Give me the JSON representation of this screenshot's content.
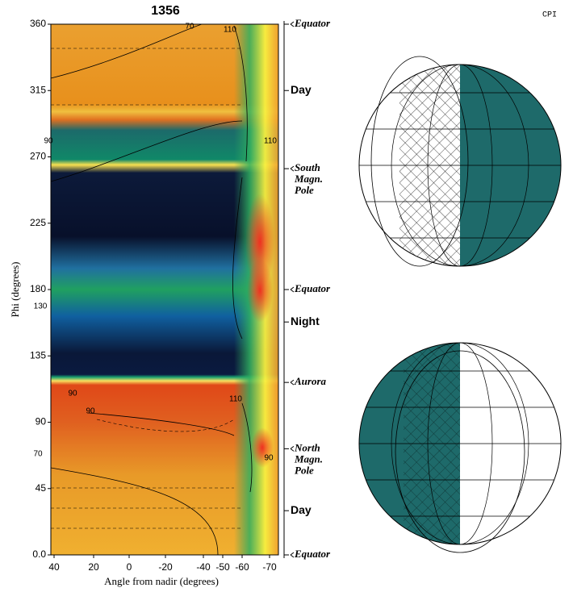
{
  "chart_data": {
    "type": "heatmap",
    "title": "1356",
    "corner_label": "CPI",
    "x_label": "Angle from nadir (degrees)",
    "y_label": "Phi (degrees)",
    "xlim": [
      42,
      -74
    ],
    "xticks": [
      40,
      20,
      0,
      -20,
      -40,
      -50,
      -60,
      -70
    ],
    "ylim": [
      0,
      360
    ],
    "yticks": [
      {
        "value": 0,
        "label": "0.0"
      },
      45,
      90,
      135,
      180,
      225,
      270,
      315,
      360
    ],
    "contour_labels": [
      "70",
      "90",
      "110",
      "90",
      "110",
      "130",
      "90",
      "110",
      "90",
      "70"
    ],
    "annotations": [
      {
        "lines": [
          "Equator"
        ],
        "phi": 360,
        "style": "italic"
      },
      {
        "lines": [
          "Day"
        ],
        "phi": 315,
        "style": "bold"
      },
      {
        "lines": [
          "South",
          "Magn.",
          "Pole"
        ],
        "phi": 262,
        "style": "italic"
      },
      {
        "lines": [
          "Equator"
        ],
        "phi": 180,
        "style": "italic"
      },
      {
        "lines": [
          "Night"
        ],
        "phi": 158,
        "style": "bold"
      },
      {
        "lines": [
          "Aurora"
        ],
        "phi": 117,
        "style": "italic"
      },
      {
        "lines": [
          "North",
          "Magn.",
          "Pole"
        ],
        "phi": 72,
        "style": "italic"
      },
      {
        "lines": [
          "Day"
        ],
        "phi": 30,
        "style": "bold"
      },
      {
        "lines": [
          "Equator"
        ],
        "phi": 0,
        "style": "italic"
      }
    ]
  }
}
